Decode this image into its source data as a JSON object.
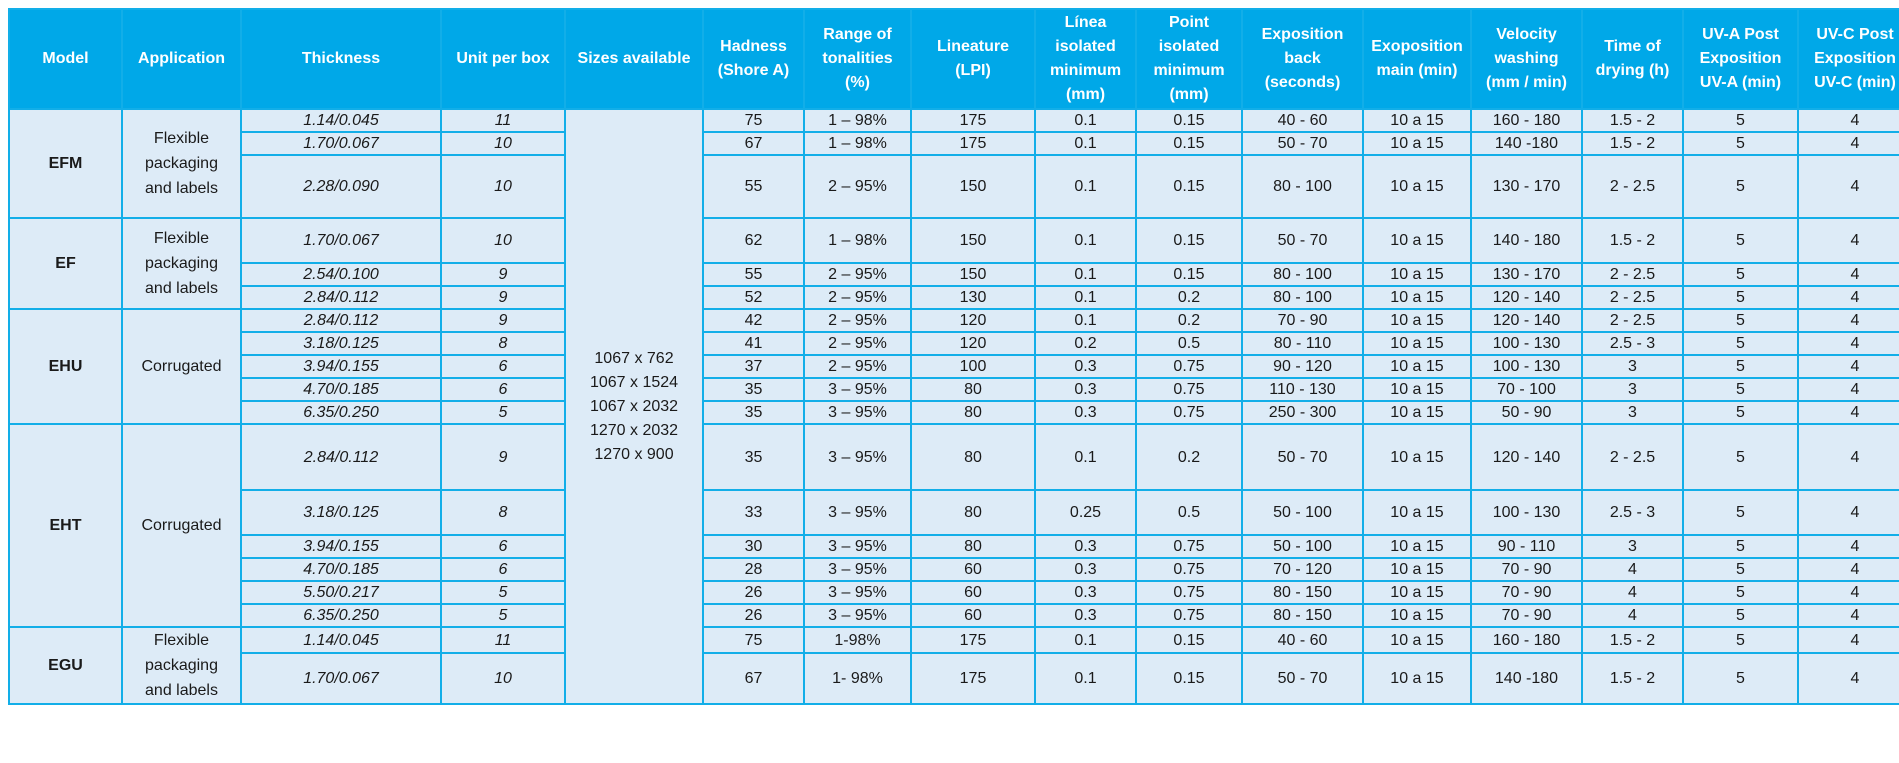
{
  "headers": [
    "Model",
    "Application",
    "Thickness",
    "Unit per box",
    "Sizes available",
    "Hadness\n(Shore A)",
    "Range of\ntonalities\n(%)",
    "Lineature\n(LPI)",
    "Línea\nisolated\nminimum\n(mm)",
    "Point\nisolated\nminimum\n(mm)",
    "Exposition\nback\n(seconds)",
    "Exoposition\nmain (min)",
    "Velocity\nwashing\n(mm / min)",
    "Time  of\ndrying (h)",
    "UV-A Post\nExposition\nUV-A (min)",
    "UV-C Post\nExposition\nUV-C (min)"
  ],
  "sizes_available": "1067 x 762\n1067 x 1524\n1067 x 2032\n1270 x 2032\n1270 x 900",
  "groups": [
    {
      "model": "EFM",
      "application": "Flexible\npackaging\nand labels",
      "rows": [
        [
          "1.14/0.045",
          "11",
          "75",
          "1 – 98%",
          "175",
          "0.1",
          "0.15",
          "40 - 60",
          "10 a 15",
          "160 - 180",
          "1.5 - 2",
          "5",
          "4"
        ],
        [
          "1.70/0.067",
          "10",
          "67",
          "1 – 98%",
          "175",
          "0.1",
          "0.15",
          "50 - 70",
          "10 a 15",
          "140 -180",
          "1.5 - 2",
          "5",
          "4"
        ],
        [
          "2.28/0.090",
          "10",
          "55",
          "2 – 95%",
          "150",
          "0.1",
          "0.15",
          "80 - 100",
          "10 a 15",
          "130 - 170",
          "2 - 2.5",
          "5",
          "4"
        ]
      ]
    },
    {
      "model": "EF",
      "application": "Flexible\npackaging\nand labels",
      "rows": [
        [
          "1.70/0.067",
          "10",
          "62",
          "1 – 98%",
          "150",
          "0.1",
          "0.15",
          "50 - 70",
          "10 a 15",
          "140 - 180",
          "1.5 - 2",
          "5",
          "4"
        ],
        [
          "2.54/0.100",
          "9",
          "55",
          "2 – 95%",
          "150",
          "0.1",
          "0.15",
          "80 - 100",
          "10 a 15",
          "130 - 170",
          "2 - 2.5",
          "5",
          "4"
        ],
        [
          "2.84/0.112",
          "9",
          "52",
          "2 – 95%",
          "130",
          "0.1",
          "0.2",
          "80 - 100",
          "10 a 15",
          "120 - 140",
          "2 - 2.5",
          "5",
          "4"
        ]
      ]
    },
    {
      "model": "EHU",
      "application": "Corrugated",
      "rows": [
        [
          "2.84/0.112",
          "9",
          "42",
          "2 – 95%",
          "120",
          "0.1",
          "0.2",
          "70 - 90",
          "10 a 15",
          "120 - 140",
          "2 - 2.5",
          "5",
          "4"
        ],
        [
          "3.18/0.125",
          "8",
          "41",
          "2 – 95%",
          "120",
          "0.2",
          "0.5",
          "80 - 110",
          "10 a 15",
          "100 - 130",
          "2.5 - 3",
          "5",
          "4"
        ],
        [
          "3.94/0.155",
          "6",
          "37",
          "2 – 95%",
          "100",
          "0.3",
          "0.75",
          "90 - 120",
          "10 a 15",
          "100 - 130",
          "3",
          "5",
          "4"
        ],
        [
          "4.70/0.185",
          "6",
          "35",
          "3 – 95%",
          "80",
          "0.3",
          "0.75",
          "110 - 130",
          "10 a 15",
          "70 - 100",
          "3",
          "5",
          "4"
        ],
        [
          "6.35/0.250",
          "5",
          "35",
          "3 – 95%",
          "80",
          "0.3",
          "0.75",
          "250 - 300",
          "10 a 15",
          "50 - 90",
          "3",
          "5",
          "4"
        ]
      ]
    },
    {
      "model": "EHT",
      "application": "Corrugated",
      "rows": [
        [
          "2.84/0.112",
          "9",
          "35",
          "3 – 95%",
          "80",
          "0.1",
          "0.2",
          "50 - 70",
          "10 a 15",
          "120 - 140",
          "2 - 2.5",
          "5",
          "4"
        ],
        [
          "3.18/0.125",
          "8",
          "33",
          "3 – 95%",
          "80",
          "0.25",
          "0.5",
          "50 - 100",
          "10 a 15",
          "100 - 130",
          "2.5 - 3",
          "5",
          "4"
        ],
        [
          "3.94/0.155",
          "6",
          "30",
          "3 – 95%",
          "80",
          "0.3",
          "0.75",
          "50 - 100",
          "10 a 15",
          "90 - 110",
          "3",
          "5",
          "4"
        ],
        [
          "4.70/0.185",
          "6",
          "28",
          "3 – 95%",
          "60",
          "0.3",
          "0.75",
          "70 - 120",
          "10 a 15",
          "70 - 90",
          "4",
          "5",
          "4"
        ],
        [
          "5.50/0.217",
          "5",
          "26",
          "3 – 95%",
          "60",
          "0.3",
          "0.75",
          "80 - 150",
          "10 a 15",
          "70 - 90",
          "4",
          "5",
          "4"
        ],
        [
          "6.35/0.250",
          "5",
          "26",
          "3 – 95%",
          "60",
          "0.3",
          "0.75",
          "80 - 150",
          "10 a 15",
          "70 - 90",
          "4",
          "5",
          "4"
        ]
      ]
    },
    {
      "model": "EGU",
      "application": "Flexible\npackaging\nand labels",
      "rows": [
        [
          "1.14/0.045",
          "11",
          "75",
          "1-98%",
          "175",
          "0.1",
          "0.15",
          "40 - 60",
          "10 a 15",
          "160 - 180",
          "1.5 - 2",
          "5",
          "4"
        ],
        [
          "1.70/0.067",
          "10",
          "67",
          "1- 98%",
          "175",
          "0.1",
          "0.15",
          "50 - 70",
          "10 a 15",
          "140 -180",
          "1.5 - 2",
          "5",
          "4"
        ]
      ]
    }
  ]
}
